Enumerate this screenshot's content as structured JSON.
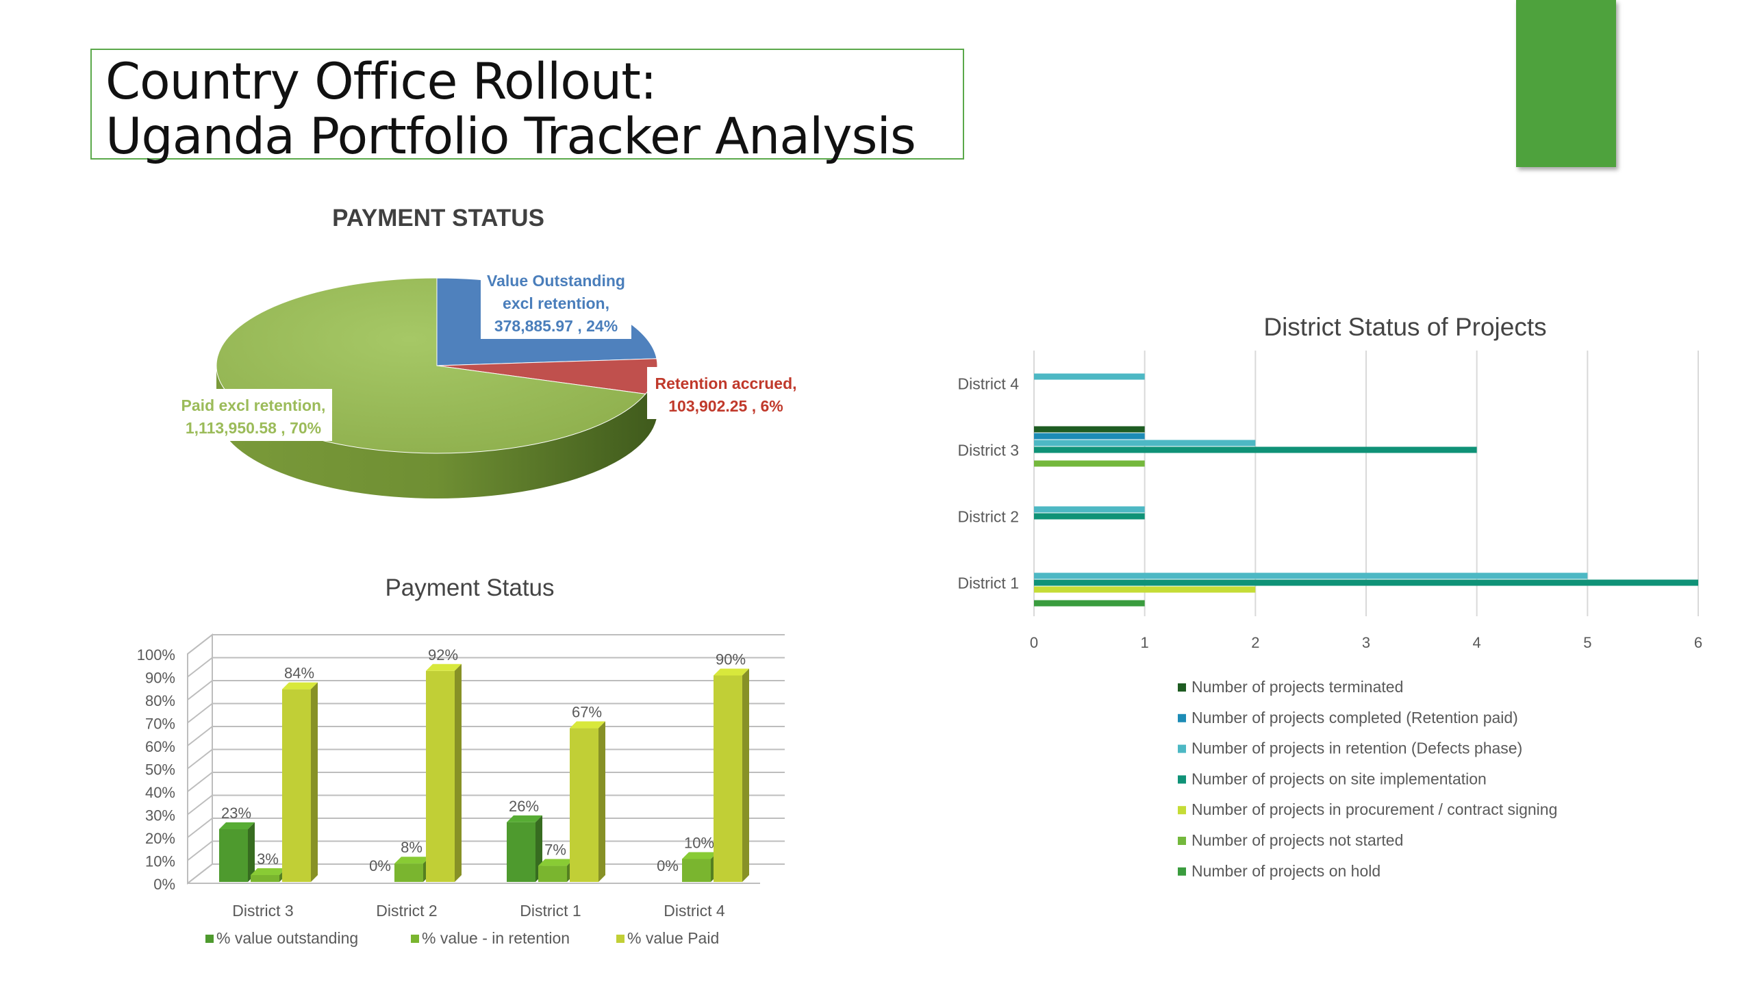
{
  "slide": {
    "title_line1": "Country Office Rollout:",
    "title_line2": "Uganda Portfolio Tracker Analysis",
    "accent_color": "#4ea23d"
  },
  "chart_data": [
    {
      "type": "pie",
      "title": "PAYMENT STATUS",
      "slices": [
        {
          "name": "Value Outstanding excl retention",
          "label_lines": [
            "Value Outstanding",
            "excl retention,",
            "378,885.97 , 24%"
          ],
          "value": 378885.97,
          "percent": 24,
          "color": "#4f81bd"
        },
        {
          "name": "Retention accrued",
          "label_lines": [
            "Retention accrued,",
            "103,902.25 , 6%"
          ],
          "value": 103902.25,
          "percent": 6,
          "color": "#c0504d"
        },
        {
          "name": "Paid excl retention",
          "label_lines": [
            "Paid excl retention,",
            "1,113,950.58 , 70%"
          ],
          "value": 1113950.58,
          "percent": 70,
          "color": "#9bbb59"
        }
      ]
    },
    {
      "type": "bar",
      "title": "Payment Status",
      "categories": [
        "District 3",
        "District 2",
        "District 1",
        "District 4"
      ],
      "ylim": [
        0,
        100
      ],
      "yticks": [
        "0%",
        "10%",
        "20%",
        "30%",
        "40%",
        "50%",
        "60%",
        "70%",
        "80%",
        "90%",
        "100%"
      ],
      "series": [
        {
          "name": "% value outstanding",
          "values": [
            23,
            0,
            26,
            0
          ],
          "labels": [
            "23%",
            "0%",
            "26%",
            "0%"
          ],
          "color": "#4e9a2e"
        },
        {
          "name": "% value - in retention",
          "values": [
            3,
            8,
            7,
            10
          ],
          "labels": [
            "3%",
            "8%",
            "7%",
            "10%"
          ],
          "color": "#7ab52f"
        },
        {
          "name": "% value Paid",
          "values": [
            84,
            92,
            67,
            90
          ],
          "labels": [
            "84%",
            "92%",
            "67%",
            "90%"
          ],
          "color": "#c1cf36"
        }
      ]
    },
    {
      "type": "bar",
      "orientation": "horizontal",
      "title": "District Status of Projects",
      "categories": [
        "District 1",
        "District 2",
        "District 3",
        "District 4"
      ],
      "xlim": [
        0,
        6
      ],
      "xticks": [
        "0",
        "1",
        "2",
        "3",
        "4",
        "5",
        "6"
      ],
      "grid": true,
      "series": [
        {
          "name": "Number of projects terminated",
          "values": [
            0,
            0,
            1,
            0
          ],
          "color": "#1e5c22"
        },
        {
          "name": "Number of projects completed (Retention paid)",
          "values": [
            0,
            0,
            1,
            0
          ],
          "color": "#1d8cb6"
        },
        {
          "name": "Number of projects in retention (Defects phase)",
          "values": [
            5,
            1,
            2,
            1
          ],
          "color": "#4db8c4"
        },
        {
          "name": "Number of projects on site implementation",
          "values": [
            6,
            1,
            4,
            0
          ],
          "color": "#0f9277"
        },
        {
          "name": "Number of projects in procurement / contract signing",
          "values": [
            2,
            0,
            0,
            0
          ],
          "color": "#c5dc36"
        },
        {
          "name": "Number of projects not started",
          "values": [
            0,
            0,
            1,
            0
          ],
          "color": "#74b83c"
        },
        {
          "name": "Number of projects on hold",
          "values": [
            1,
            0,
            0,
            0
          ],
          "color": "#3a9c3e"
        }
      ]
    }
  ]
}
